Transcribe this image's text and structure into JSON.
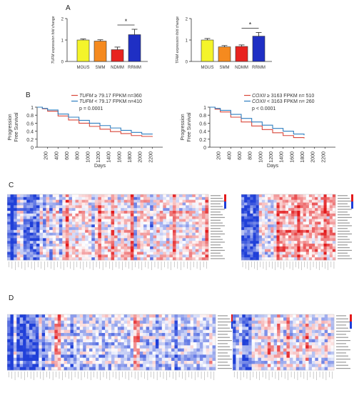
{
  "panel_labels": [
    "A",
    "B",
    "C",
    "D"
  ],
  "colors": {
    "mgus": "#f4f42a",
    "smm": "#f58a1f",
    "ndmm": "#e8231f",
    "rrmm": "#1f2fc4",
    "km_high": "#d9473a",
    "km_low": "#2f7fc0",
    "hm_low": "#1f3fd8",
    "hm_mid": "#ffffff",
    "hm_high": "#e31a1c"
  },
  "chart_data": [
    {
      "type": "bar",
      "categories": [
        "MGUS",
        "SMM",
        "NDMM",
        "RRMM"
      ],
      "values": [
        1.0,
        0.95,
        0.55,
        1.25
      ],
      "errors": [
        0.05,
        0.06,
        0.12,
        0.25
      ],
      "ylabel": "TUFM expression fold change",
      "ylim": [
        0,
        2
      ],
      "yticks": [
        "0",
        "1",
        "2"
      ],
      "significance": {
        "between": [
          "NDMM",
          "RRMM"
        ],
        "label": "*"
      }
    },
    {
      "type": "bar",
      "categories": [
        "MGUS",
        "SMM",
        "NDMM",
        "RRMM"
      ],
      "values": [
        1.0,
        0.68,
        0.7,
        1.18
      ],
      "errors": [
        0.07,
        0.06,
        0.07,
        0.17
      ],
      "ylabel": "TFAM expression fold change",
      "ylim": [
        0,
        2
      ],
      "yticks": [
        "0",
        "1",
        "2"
      ],
      "significance": {
        "between": [
          "NDMM",
          "RRMM"
        ],
        "label": "*"
      }
    },
    {
      "type": "line",
      "xlabel": "Days",
      "ylabel_lines": [
        "Progression",
        "Free Survival"
      ],
      "xlim": [
        0,
        2400
      ],
      "xticks": [
        "200",
        "400",
        "600",
        "800",
        "1000",
        "1200",
        "1400",
        "1600",
        "1800",
        "2000",
        "2200"
      ],
      "ylim": [
        0,
        1
      ],
      "yticks": [
        "0",
        "0.2",
        "0.4",
        "0.6",
        "0.8",
        "1"
      ],
      "legend": [
        {
          "gene": "TUFM",
          "rest": " ≥ 79.17 FPKM n=360"
        },
        {
          "gene": "TUFM",
          "rest": " < 79.17 FPKM n=410"
        }
      ],
      "pvalue": "p = 0.0001",
      "series": [
        {
          "x": [
            0,
            100,
            200,
            400,
            600,
            800,
            1000,
            1200,
            1400,
            1600,
            1800,
            2000,
            2200
          ],
          "y": [
            1.0,
            0.96,
            0.9,
            0.78,
            0.68,
            0.6,
            0.52,
            0.45,
            0.39,
            0.34,
            0.29,
            0.27,
            0.26
          ]
        },
        {
          "x": [
            0,
            100,
            200,
            400,
            600,
            800,
            1000,
            1200,
            1400,
            1600,
            1800,
            2000,
            2200
          ],
          "y": [
            1.0,
            0.97,
            0.93,
            0.83,
            0.75,
            0.67,
            0.6,
            0.54,
            0.48,
            0.42,
            0.37,
            0.33,
            0.32
          ]
        }
      ]
    },
    {
      "type": "line",
      "xlabel": "Days",
      "ylabel_lines": [
        "Progression",
        "Free Survival"
      ],
      "xlim": [
        0,
        2400
      ],
      "xticks": [
        "200",
        "400",
        "600",
        "800",
        "1000",
        "1200",
        "1400",
        "1600",
        "1800",
        "2000",
        "2200"
      ],
      "ylim": [
        0,
        1
      ],
      "yticks": [
        "0",
        "0.2",
        "0.4",
        "0.6",
        "0.8",
        "1"
      ],
      "legend": [
        {
          "gene": "COXII",
          "rest": " ≥ 3163 FPKM n= 510"
        },
        {
          "gene": "COXII",
          "rest": " < 3163 FPKM n= 260"
        }
      ],
      "pvalue": "p < 0.0001",
      "series": [
        {
          "x": [
            0,
            100,
            200,
            400,
            600,
            800,
            1000,
            1200,
            1400,
            1600,
            1800
          ],
          "y": [
            1.0,
            0.95,
            0.88,
            0.75,
            0.63,
            0.53,
            0.44,
            0.36,
            0.29,
            0.24,
            0.22
          ]
        },
        {
          "x": [
            0,
            100,
            200,
            400,
            600,
            800,
            1000,
            1200,
            1400,
            1600,
            1800
          ],
          "y": [
            1.0,
            0.97,
            0.92,
            0.82,
            0.72,
            0.63,
            0.55,
            0.47,
            0.4,
            0.33,
            0.3
          ]
        }
      ]
    },
    {
      "type": "heatmap",
      "panel": "C-left",
      "rows": 24,
      "cols": 62
    },
    {
      "type": "heatmap",
      "panel": "C-right",
      "rows": 24,
      "cols": 32
    },
    {
      "type": "heatmap",
      "panel": "D-left",
      "rows": 18,
      "cols": 66
    },
    {
      "type": "heatmap",
      "panel": "D-right",
      "rows": 18,
      "cols": 32
    }
  ]
}
